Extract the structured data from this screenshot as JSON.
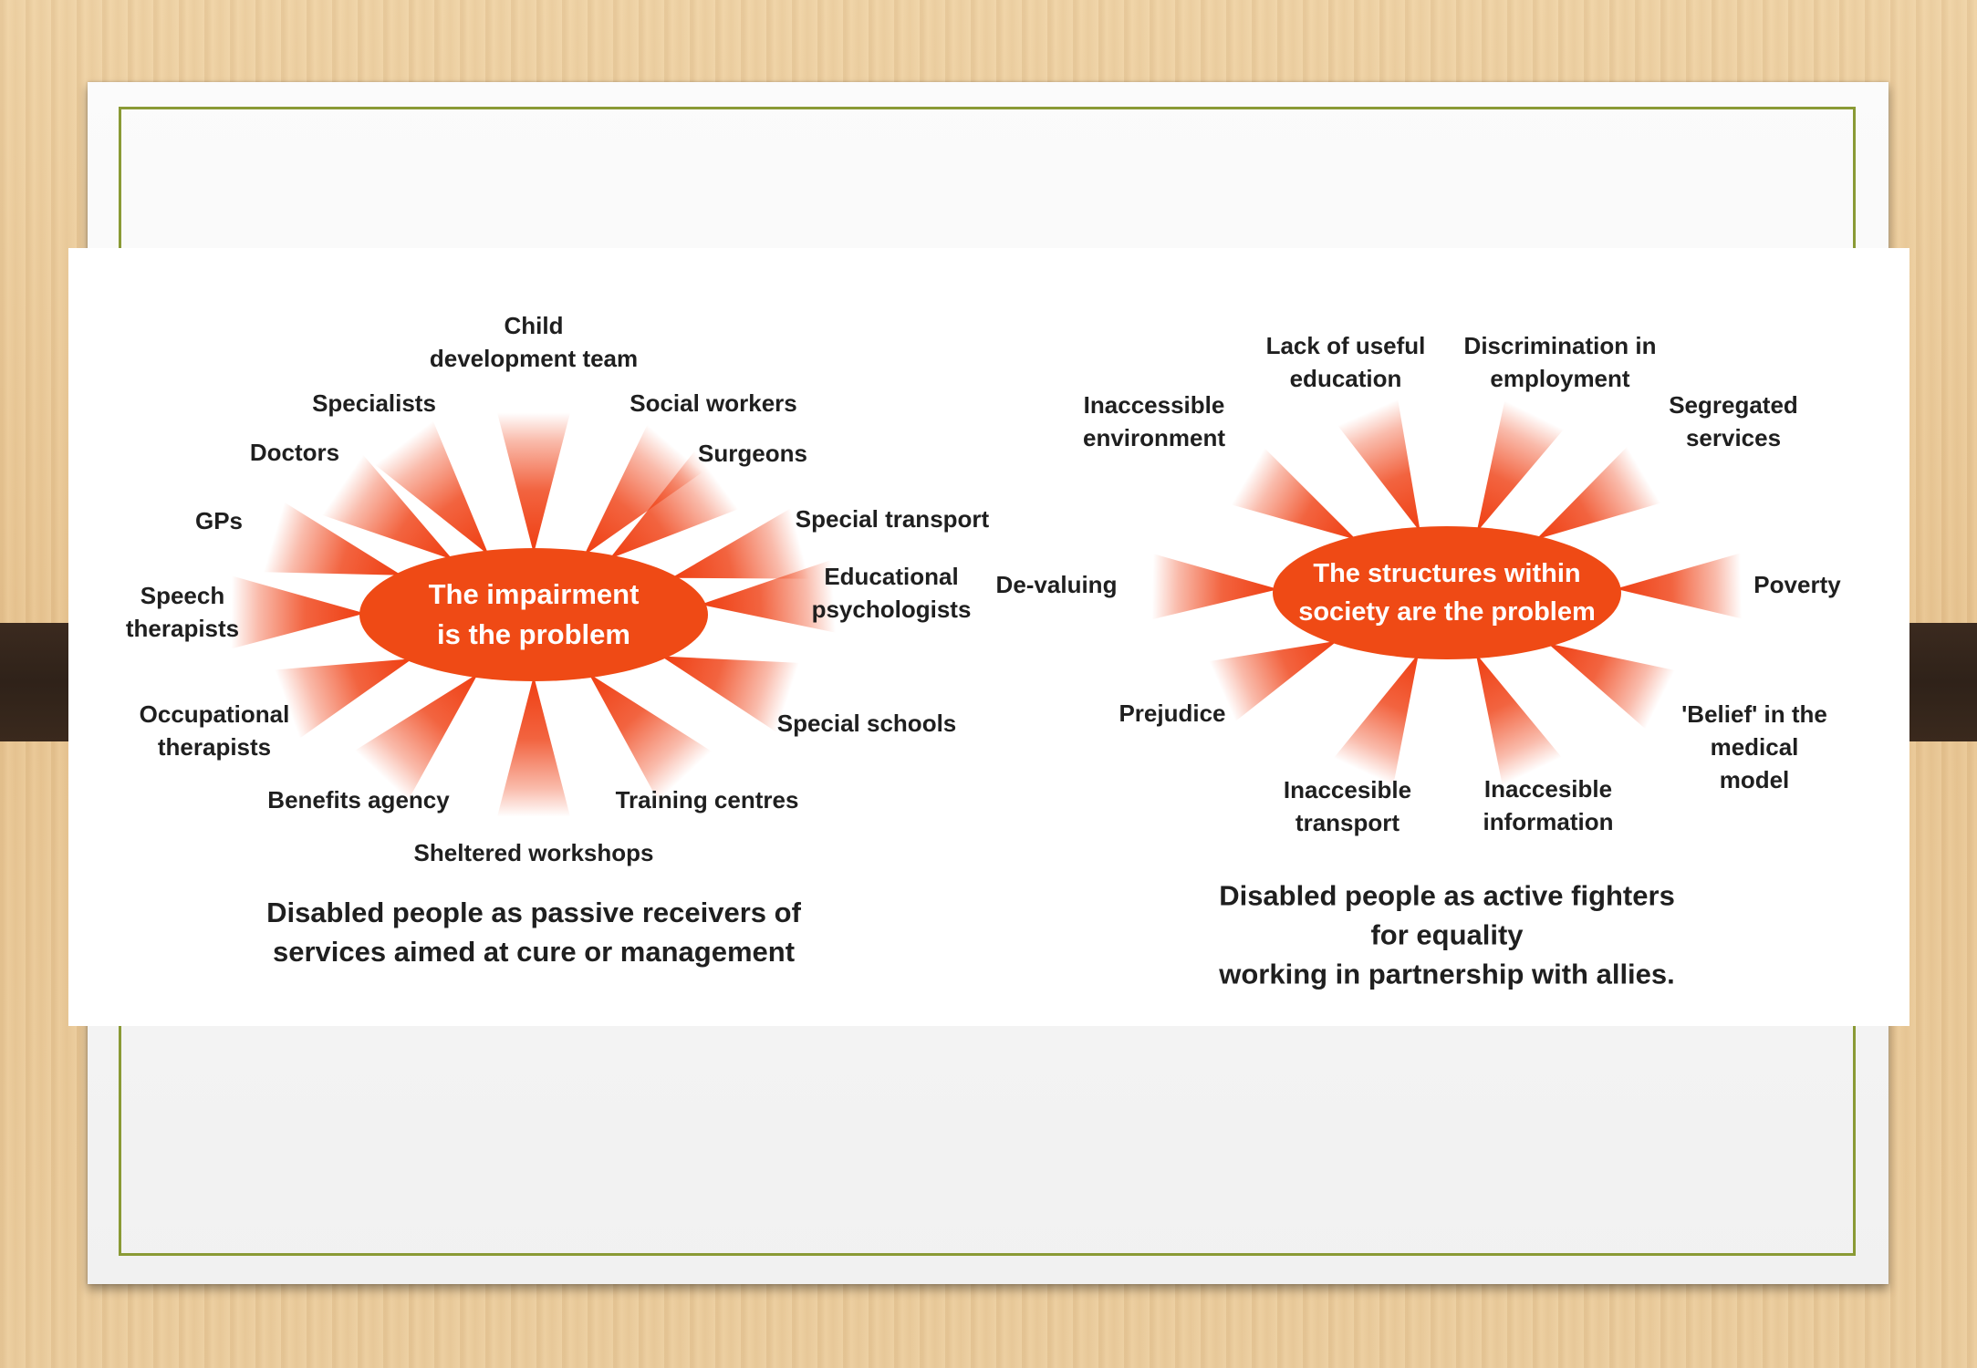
{
  "colors": {
    "ray": "#ef3d10",
    "hub": "#ef4a15",
    "frame": "#8a9a35",
    "text": "#1f1f1f"
  },
  "medical_model": {
    "hub_text": "The impairment\nis the problem",
    "labels": [
      "Child\ndevelopment team",
      "Social workers",
      "Surgeons",
      "Special transport",
      "Educational\npsychologists",
      "Special schools",
      "Training centres",
      "Sheltered workshops",
      "Benefits agency",
      "Occupational\ntherapists",
      "Speech\ntherapists",
      "GPs",
      "Doctors",
      "Specialists"
    ],
    "caption": "Disabled people as passive receivers of\nservices aimed at cure or management"
  },
  "social_model": {
    "hub_text": "The structures within\nsociety are the problem",
    "labels": [
      "Lack of useful\neducation",
      "Discrimination in\nemployment",
      "Segregated\nservices",
      "Poverty",
      "'Belief' in the\nmedical model",
      "Inaccesible\ninformation",
      "Inaccesible\ntransport",
      "Prejudice",
      "De-valuing",
      "Inaccessible\nenvironment"
    ],
    "caption": "Disabled people as active fighters for equality\nworking in partnership with allies."
  }
}
